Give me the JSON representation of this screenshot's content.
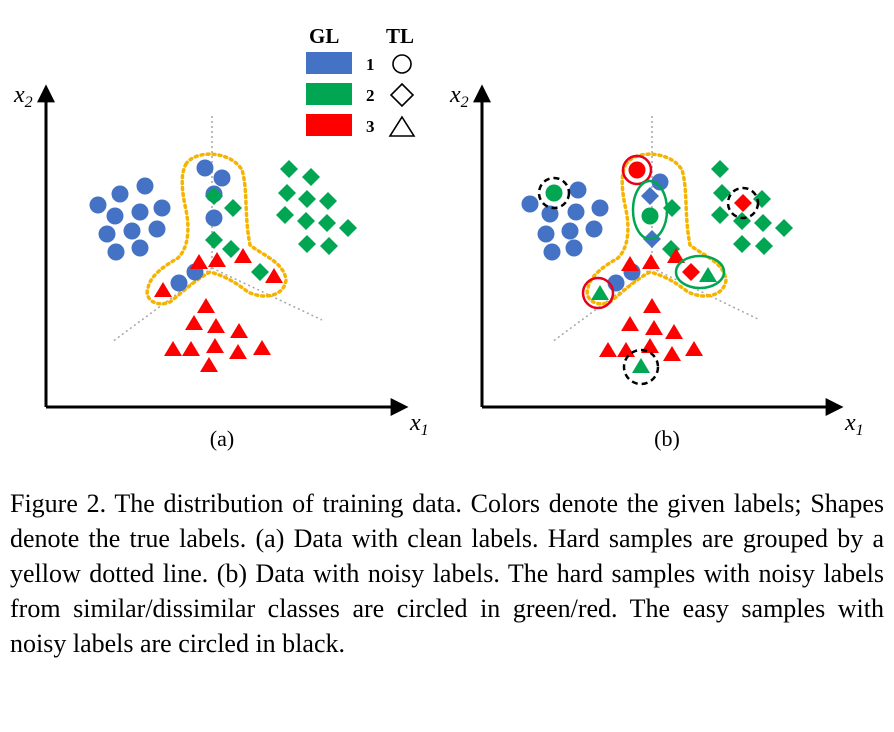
{
  "legend": {
    "gl_header": "GL",
    "tl_header": "TL",
    "rows": [
      {
        "label": "1",
        "color": "#4472C4",
        "shape": "circle"
      },
      {
        "label": "2",
        "color": "#00A651",
        "shape": "diamond"
      },
      {
        "label": "3",
        "color": "#FF0000",
        "shape": "triangle"
      }
    ]
  },
  "panels": [
    {
      "id": "a",
      "label": "(a)",
      "x_axis_label": "x",
      "x_axis_sub": "1",
      "y_axis_label": "x",
      "y_axis_sub": "2"
    },
    {
      "id": "b",
      "label": "(b)",
      "x_axis_label": "x",
      "x_axis_sub": "1",
      "y_axis_label": "x",
      "y_axis_sub": "2"
    }
  ],
  "colors": {
    "blue": "#4472C4",
    "green": "#00A651",
    "red": "#FF0000",
    "hard_outline": "#F5B400",
    "divider": "#A6A6A6"
  },
  "caption": "Figure 2.  The distribution of training data.  Colors denote the given labels; Shapes denote the true labels.  (a) Data with clean labels. Hard samples are grouped by a yellow dotted line. (b) Data with noisy labels.  The hard samples with noisy labels from similar/dissimilar classes are circled in green/red.  The easy samples with noisy labels are circled in black."
}
